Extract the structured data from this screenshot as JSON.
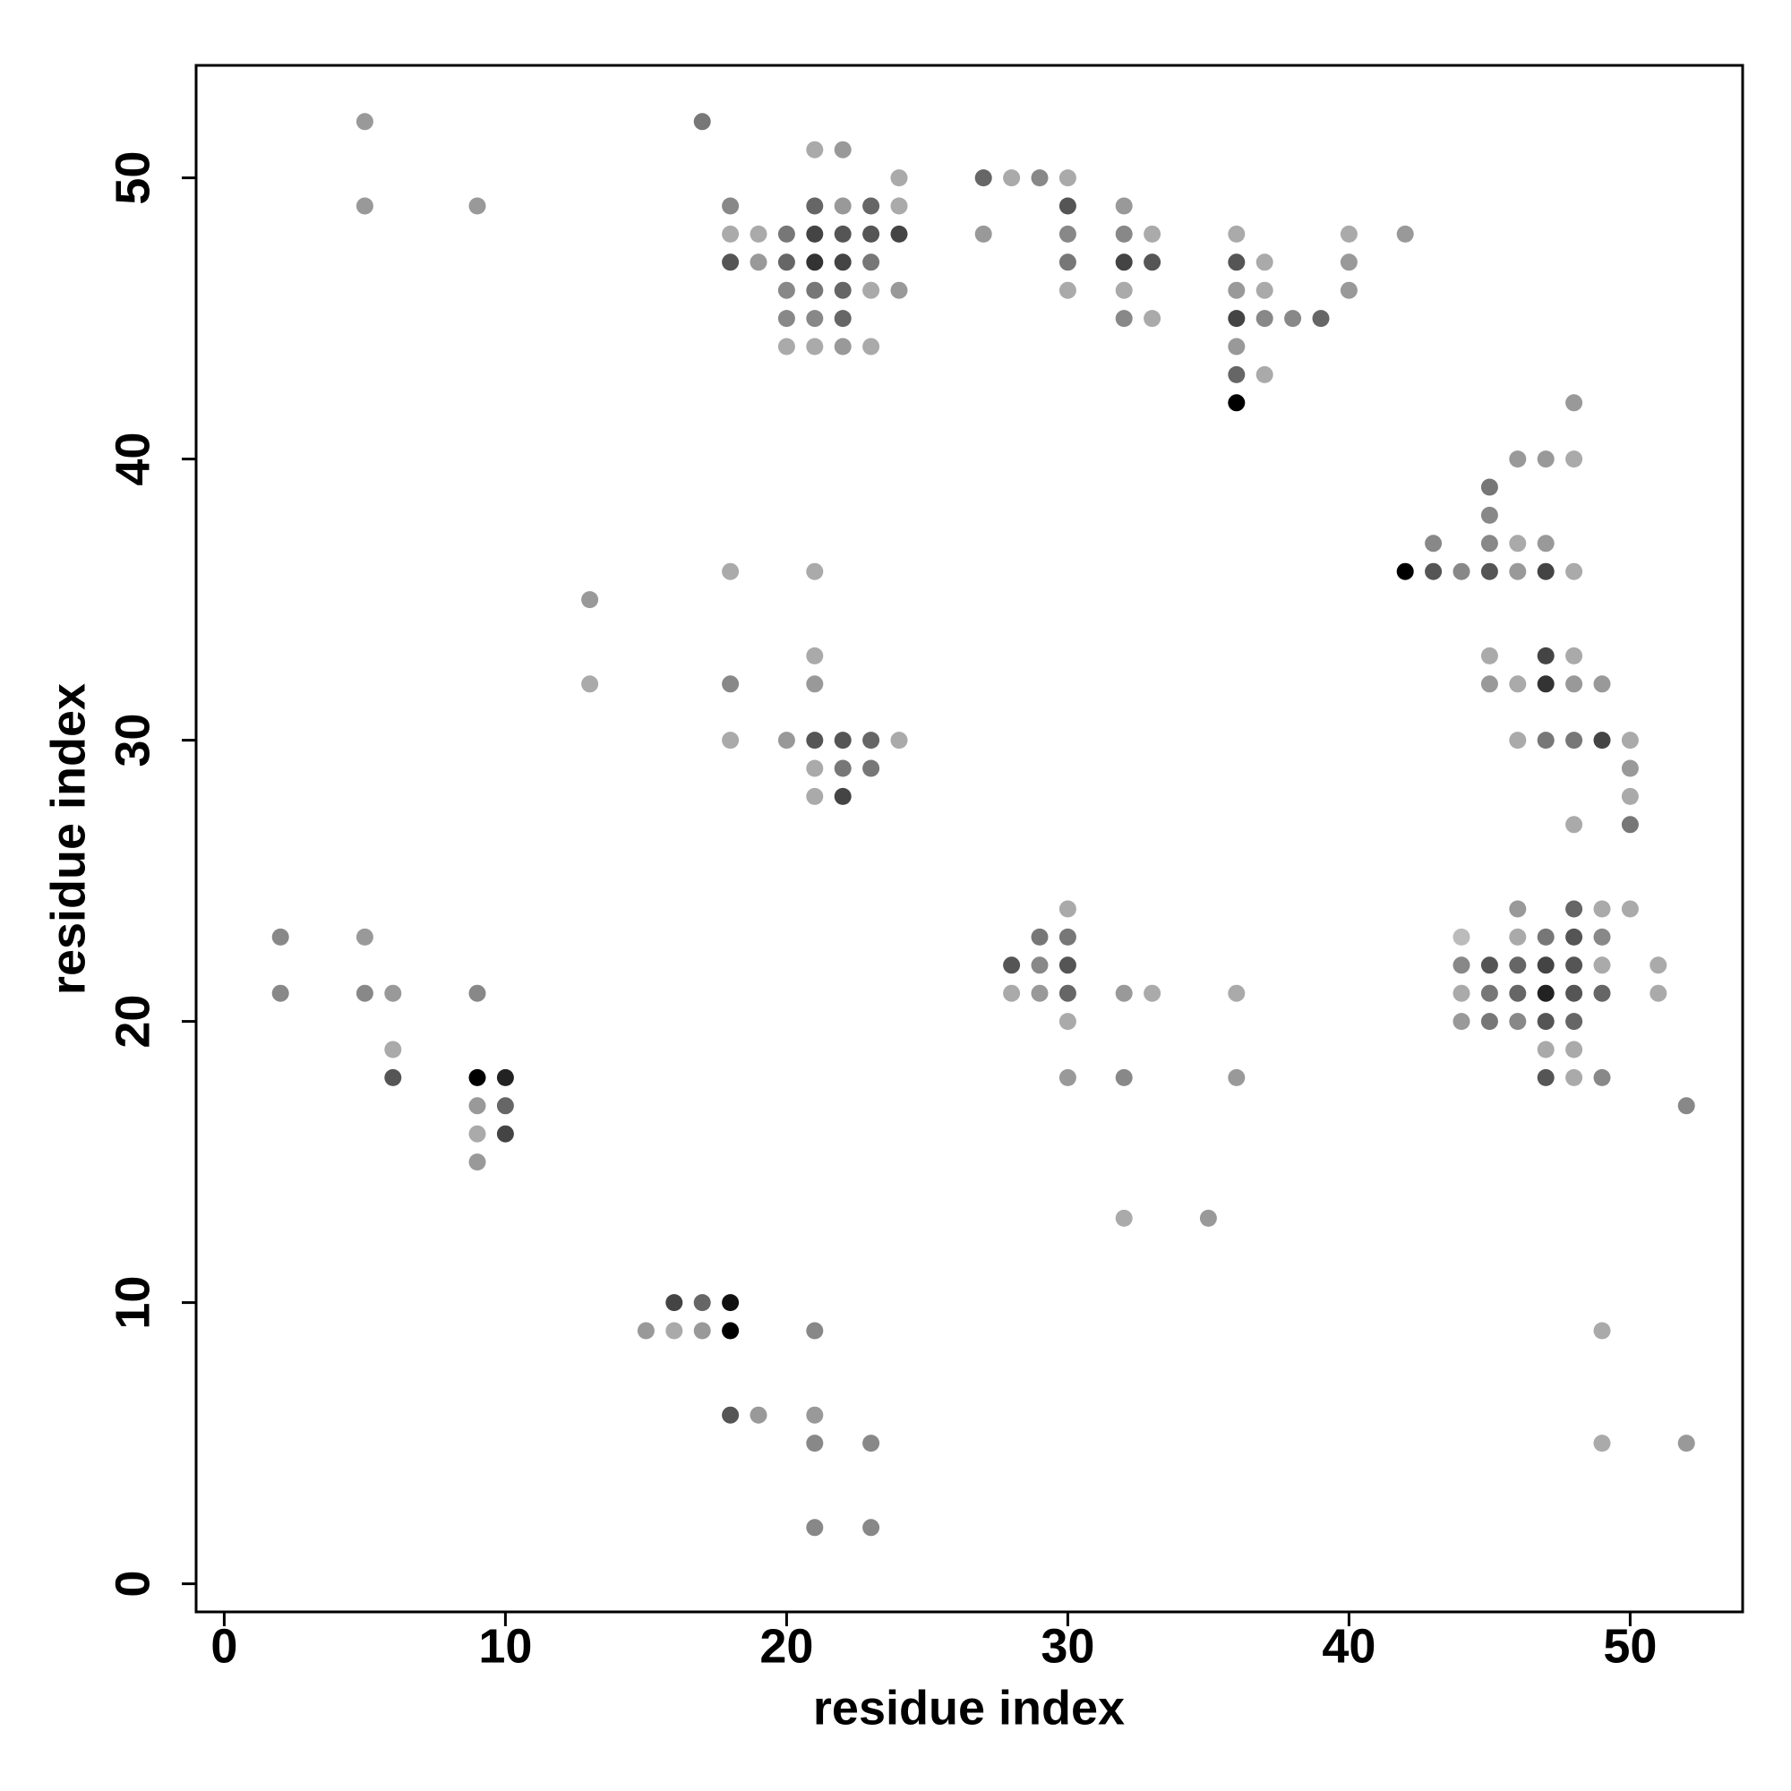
{
  "chart_data": {
    "type": "scatter",
    "xlabel": "residue index",
    "ylabel": "residue index",
    "xlim": [
      -1,
      54
    ],
    "ylim": [
      -1,
      54
    ],
    "xticks": [
      0,
      10,
      20,
      30,
      40,
      50
    ],
    "yticks": [
      0,
      10,
      20,
      30,
      40,
      50
    ],
    "x": [
      5,
      17,
      21,
      22,
      24,
      27,
      28,
      29,
      30,
      5,
      9,
      18,
      21,
      22,
      23,
      24,
      30,
      32,
      18,
      19,
      20,
      21,
      22,
      23,
      24,
      27,
      30,
      32,
      33,
      36,
      40,
      42,
      18,
      19,
      20,
      21,
      22,
      23,
      30,
      32,
      33,
      36,
      37,
      40,
      20,
      21,
      22,
      23,
      24,
      30,
      32,
      36,
      37,
      40,
      20,
      21,
      22,
      32,
      33,
      36,
      37,
      38,
      39,
      20,
      21,
      22,
      23,
      36,
      36,
      37,
      36,
      48,
      46,
      47,
      48,
      45,
      45,
      43,
      45,
      46,
      47,
      18,
      21,
      42,
      43,
      44,
      45,
      46,
      47,
      48,
      13,
      21,
      45,
      47,
      48,
      13,
      18,
      21,
      45,
      46,
      47,
      48,
      49,
      18,
      20,
      21,
      22,
      23,
      24,
      46,
      47,
      48,
      49,
      50,
      21,
      22,
      23,
      50,
      21,
      22,
      50,
      48,
      50,
      30,
      46,
      48,
      49,
      50,
      2,
      5,
      29,
      30,
      44,
      46,
      47,
      48,
      49,
      28,
      29,
      30,
      44,
      45,
      46,
      47,
      48,
      49,
      51,
      2,
      5,
      6,
      9,
      28,
      29,
      30,
      32,
      33,
      36,
      44,
      45,
      46,
      47,
      48,
      49,
      51,
      30,
      44,
      45,
      46,
      47,
      48,
      6,
      47,
      48,
      6,
      9,
      10,
      30,
      32,
      36,
      47,
      48,
      49,
      9,
      10,
      52,
      9,
      10,
      9,
      32,
      35,
      16,
      17,
      18,
      15,
      16,
      17,
      18,
      21,
      49,
      18,
      19,
      21,
      21,
      23,
      49,
      52,
      21,
      23
    ],
    "y": [
      52,
      52,
      51,
      51,
      50,
      50,
      50,
      50,
      50,
      49,
      49,
      49,
      49,
      49,
      49,
      49,
      49,
      49,
      48,
      48,
      48,
      48,
      48,
      48,
      48,
      48,
      48,
      48,
      48,
      48,
      48,
      48,
      47,
      47,
      47,
      47,
      47,
      47,
      47,
      47,
      47,
      47,
      47,
      47,
      46,
      46,
      46,
      46,
      46,
      46,
      46,
      46,
      46,
      46,
      45,
      45,
      45,
      45,
      45,
      45,
      45,
      45,
      45,
      44,
      44,
      44,
      44,
      44,
      43,
      43,
      42,
      42,
      40,
      40,
      40,
      39,
      38,
      37,
      37,
      37,
      37,
      36,
      36,
      36,
      36,
      36,
      36,
      36,
      36,
      36,
      35,
      33,
      33,
      33,
      33,
      32,
      32,
      32,
      32,
      32,
      32,
      32,
      32,
      30,
      30,
      30,
      30,
      30,
      30,
      30,
      30,
      30,
      30,
      30,
      29,
      29,
      29,
      29,
      28,
      28,
      28,
      27,
      27,
      24,
      24,
      24,
      24,
      24,
      23,
      23,
      23,
      23,
      23,
      23,
      23,
      23,
      23,
      22,
      22,
      22,
      22,
      22,
      22,
      22,
      22,
      22,
      22,
      21,
      21,
      21,
      21,
      21,
      21,
      21,
      21,
      21,
      21,
      21,
      21,
      21,
      21,
      21,
      21,
      21,
      20,
      20,
      20,
      20,
      20,
      20,
      19,
      19,
      19,
      18,
      18,
      18,
      18,
      18,
      18,
      18,
      18,
      18,
      17,
      17,
      17,
      16,
      16,
      15,
      13,
      13,
      10,
      10,
      10,
      9,
      9,
      9,
      9,
      9,
      9,
      6,
      6,
      6,
      5,
      5,
      5,
      5,
      2,
      2
    ],
    "colors": [
      "#999",
      "#777",
      "#aaa",
      "#999",
      "#aaa",
      "#666",
      "#aaa",
      "#888",
      "#aaa",
      "#999",
      "#999",
      "#888",
      "#666",
      "#999",
      "#666",
      "#aaa",
      "#555",
      "#999",
      "#aaa",
      "#aaa",
      "#777",
      "#444",
      "#555",
      "#555",
      "#444",
      "#999",
      "#888",
      "#888",
      "#aaa",
      "#aaa",
      "#aaa",
      "#999",
      "#555",
      "#999",
      "#666",
      "#333",
      "#444",
      "#777",
      "#777",
      "#444",
      "#555",
      "#555",
      "#aaa",
      "#999",
      "#888",
      "#777",
      "#666",
      "#aaa",
      "#999",
      "#aaa",
      "#aaa",
      "#999",
      "#aaa",
      "#999",
      "#888",
      "#888",
      "#666",
      "#888",
      "#aaa",
      "#444",
      "#888",
      "#888",
      "#666",
      "#aaa",
      "#aaa",
      "#999",
      "#aaa",
      "#999",
      "#666",
      "#aaa",
      "#000",
      "#999",
      "#999",
      "#999",
      "#aaa",
      "#777",
      "#888",
      "#888",
      "#888",
      "#aaa",
      "#999",
      "#aaa",
      "#aaa",
      "#000",
      "#555",
      "#888",
      "#555",
      "#999",
      "#444",
      "#aaa",
      "#999",
      "#aaa",
      "#aaa",
      "#444",
      "#aaa",
      "#aaa",
      "#888",
      "#999",
      "#999",
      "#aaa",
      "#333",
      "#999",
      "#999",
      "#aaa",
      "#999",
      "#555",
      "#555",
      "#666",
      "#aaa",
      "#aaa",
      "#777",
      "#777",
      "#444",
      "#aaa",
      "#aaa",
      "#777",
      "#777",
      "#999",
      "#aaa",
      "#444",
      "#aaa",
      "#aaa",
      "#777",
      "#aaa",
      "#999",
      "#666",
      "#aaa",
      "#aaa",
      "#888",
      "#999",
      "#777",
      "#777",
      "#bbb",
      "#aaa",
      "#777",
      "#555",
      "#888",
      "#555",
      "#888",
      "#555",
      "#888",
      "#555",
      "#666",
      "#444",
      "#555",
      "#aaa",
      "#aaa",
      "#888",
      "#888",
      "#999",
      "#888",
      "#aaa",
      "#999",
      "#666",
      "#999",
      "#aaa",
      "#aaa",
      "#aaa",
      "#777",
      "#666",
      "#222",
      "#555",
      "#666",
      "#aaa",
      "#aaa",
      "#999",
      "#777",
      "#888",
      "#555",
      "#666",
      "#aaa",
      "#aaa",
      "#aaa",
      "#555",
      "#000",
      "#222",
      "#999",
      "#888",
      "#999",
      "#555",
      "#aaa",
      "#888",
      "#999",
      "#666",
      "#888",
      "#aaa",
      "#444",
      "#999",
      "#aaa",
      "#999",
      "#444",
      "#666",
      "#111",
      "#999",
      "#aaa",
      "#999",
      "#000",
      "#888",
      "#aaa",
      "#555",
      "#999",
      "#999",
      "#888",
      "#888",
      "#aaa",
      "#999",
      "#888",
      "#888"
    ]
  }
}
